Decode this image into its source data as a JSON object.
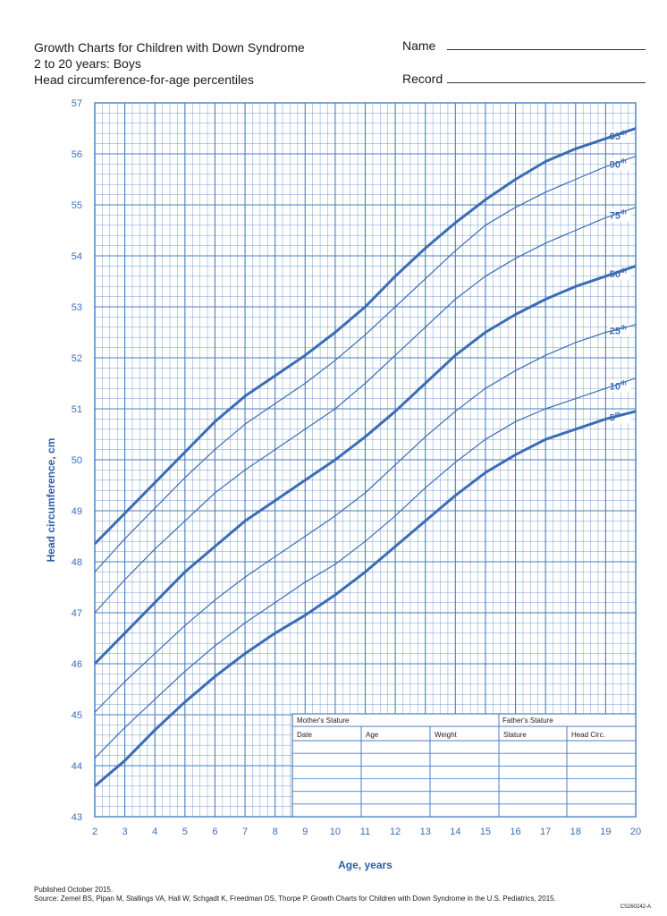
{
  "header": {
    "title_line1": "Growth Charts for Children with Down Syndrome",
    "title_line2": "2 to 20 years: Boys",
    "title_line3": "Head circumference-for-age percentiles",
    "name_label": "Name",
    "record_label": "Record"
  },
  "footer": {
    "published": "Published October 2015.",
    "source": "Source: Zemel BS, Pipan M, Stallings VA, Hall W, Schgadt K, Freedman DS, Thorpe P. Growth Charts for Children with Down Syndrome in the U.S. Pediatrics, 2015.",
    "code": "CS260242-A"
  },
  "record_table": {
    "group_headers": [
      "Mother's Stature",
      "Father's Stature"
    ],
    "columns": [
      "Date",
      "Age",
      "Weight",
      "Stature",
      "Head Circ."
    ],
    "empty_rows": 6
  },
  "colors": {
    "grid": "#4a7fc1",
    "curve": "#3b6db3",
    "axis_text": "#3a6fb7"
  },
  "chart_data": {
    "type": "line",
    "xlabel": "Age, years",
    "ylabel": "Head circumference, cm",
    "xlim": [
      2,
      20
    ],
    "ylim": [
      43,
      57
    ],
    "xticks": [
      2,
      3,
      4,
      5,
      6,
      7,
      8,
      9,
      10,
      11,
      12,
      13,
      14,
      15,
      16,
      17,
      18,
      19,
      20
    ],
    "yticks": [
      43,
      44,
      45,
      46,
      47,
      48,
      49,
      50,
      51,
      52,
      53,
      54,
      55,
      56,
      57
    ],
    "x": [
      2,
      3,
      4,
      5,
      6,
      7,
      8,
      9,
      10,
      11,
      12,
      13,
      14,
      15,
      16,
      17,
      18,
      19,
      20
    ],
    "series": [
      {
        "name": "5th",
        "label": "5",
        "sup": "th",
        "bold": true,
        "values": [
          43.6,
          44.1,
          44.7,
          45.25,
          45.75,
          46.2,
          46.6,
          46.95,
          47.35,
          47.8,
          48.3,
          48.8,
          49.3,
          49.75,
          50.1,
          50.4,
          50.6,
          50.8,
          50.95
        ]
      },
      {
        "name": "10th",
        "label": "10",
        "sup": "th",
        "bold": false,
        "values": [
          44.15,
          44.75,
          45.3,
          45.85,
          46.35,
          46.8,
          47.2,
          47.6,
          47.95,
          48.4,
          48.9,
          49.45,
          49.95,
          50.4,
          50.75,
          51.0,
          51.2,
          51.4,
          51.6
        ]
      },
      {
        "name": "25th",
        "label": "25",
        "sup": "th",
        "bold": false,
        "values": [
          45.05,
          45.65,
          46.2,
          46.75,
          47.25,
          47.7,
          48.1,
          48.5,
          48.9,
          49.35,
          49.9,
          50.45,
          50.95,
          51.4,
          51.75,
          52.05,
          52.3,
          52.5,
          52.65
        ]
      },
      {
        "name": "50th",
        "label": "50",
        "sup": "th",
        "bold": true,
        "values": [
          46.0,
          46.6,
          47.2,
          47.8,
          48.3,
          48.8,
          49.2,
          49.6,
          50.0,
          50.45,
          50.95,
          51.5,
          52.05,
          52.5,
          52.85,
          53.15,
          53.4,
          53.6,
          53.8
        ]
      },
      {
        "name": "75th",
        "label": "75",
        "sup": "th",
        "bold": false,
        "values": [
          47.0,
          47.65,
          48.25,
          48.8,
          49.35,
          49.8,
          50.2,
          50.6,
          51.0,
          51.5,
          52.05,
          52.6,
          53.15,
          53.6,
          53.95,
          54.25,
          54.5,
          54.75,
          54.95
        ]
      },
      {
        "name": "90th",
        "label": "90",
        "sup": "th",
        "bold": false,
        "values": [
          47.8,
          48.45,
          49.05,
          49.65,
          50.2,
          50.7,
          51.1,
          51.5,
          51.95,
          52.45,
          53.0,
          53.55,
          54.1,
          54.6,
          54.95,
          55.25,
          55.5,
          55.75,
          55.95
        ]
      },
      {
        "name": "95th",
        "label": "95",
        "sup": "th",
        "bold": true,
        "values": [
          48.35,
          48.95,
          49.55,
          50.15,
          50.75,
          51.25,
          51.65,
          52.05,
          52.5,
          53.0,
          53.6,
          54.15,
          54.65,
          55.1,
          55.5,
          55.85,
          56.1,
          56.3,
          56.5
        ]
      }
    ]
  }
}
